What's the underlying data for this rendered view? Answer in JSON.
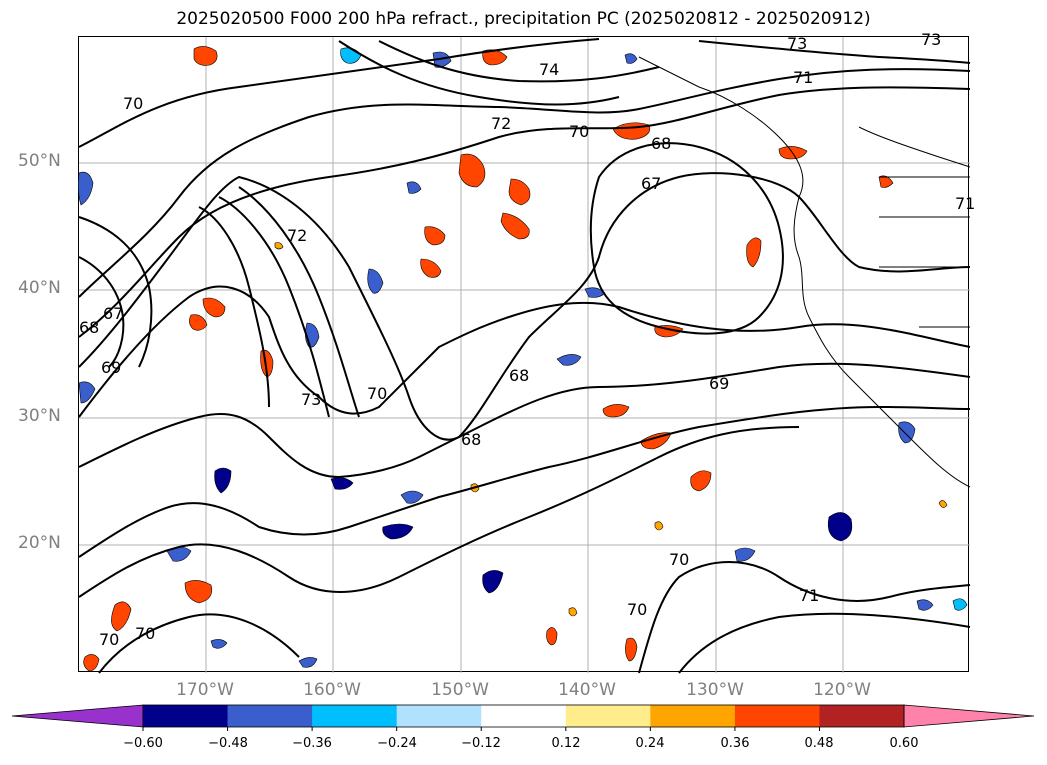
{
  "title": "2025020500 F000 200 hPa refract., precipitation PC (2025020812 - 2025020912)",
  "map": {
    "region": "North Pacific and western North America",
    "lat_labels": [
      "50°N",
      "40°N",
      "30°N",
      "20°N"
    ],
    "lon_labels": [
      "170°W",
      "160°W",
      "150°W",
      "140°W",
      "130°W",
      "120°W"
    ],
    "contour_labels": [
      "70",
      "74",
      "73",
      "73",
      "71",
      "72",
      "70",
      "68",
      "67",
      "72",
      "67",
      "68",
      "69",
      "73",
      "70",
      "68",
      "68",
      "69",
      "70",
      "70",
      "71",
      "70",
      "70",
      "71"
    ],
    "contour_color": "#000000",
    "coastline_color": "#000000",
    "grid_color": "#b0b0b0"
  },
  "colorbar": {
    "ticks": [
      "−0.60",
      "−0.48",
      "−0.36",
      "−0.24",
      "−0.12",
      "0.12",
      "0.24",
      "0.36",
      "0.48",
      "0.60"
    ],
    "colors": [
      "#9932cc",
      "#00008b",
      "#3a5fcd",
      "#00bfff",
      "#b0e2ff",
      "#ffffff",
      "#ffec8b",
      "#ffa500",
      "#ff4500",
      "#b22222",
      "#ff82ab"
    ],
    "extend": "both"
  }
}
